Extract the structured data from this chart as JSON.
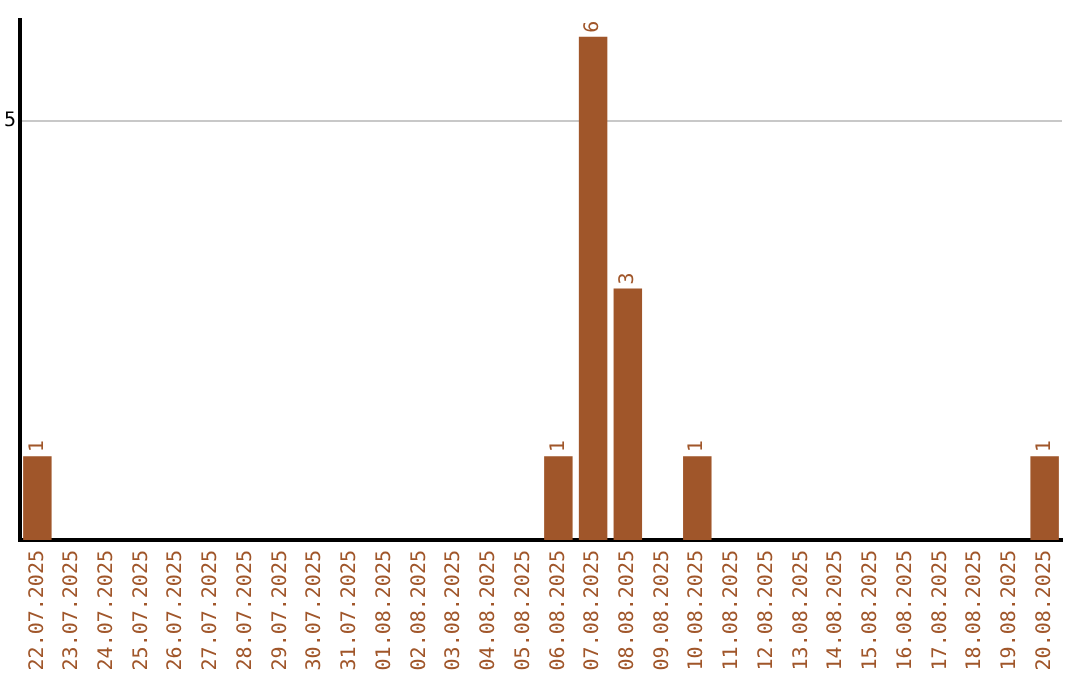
{
  "chart_data": {
    "type": "bar",
    "categories": [
      "22.07.2025",
      "23.07.2025",
      "24.07.2025",
      "25.07.2025",
      "26.07.2025",
      "27.07.2025",
      "28.07.2025",
      "29.07.2025",
      "30.07.2025",
      "31.07.2025",
      "01.08.2025",
      "02.08.2025",
      "03.08.2025",
      "04.08.2025",
      "05.08.2025",
      "06.08.2025",
      "07.08.2025",
      "08.08.2025",
      "09.08.2025",
      "10.08.2025",
      "11.08.2025",
      "12.08.2025",
      "13.08.2025",
      "14.08.2025",
      "15.08.2025",
      "16.08.2025",
      "17.08.2025",
      "18.08.2025",
      "19.08.2025",
      "20.08.2025"
    ],
    "values": [
      1,
      0,
      0,
      0,
      0,
      0,
      0,
      0,
      0,
      0,
      0,
      0,
      0,
      0,
      0,
      1,
      6,
      3,
      0,
      1,
      0,
      0,
      0,
      0,
      0,
      0,
      0,
      0,
      0,
      1
    ],
    "value_labels": [
      "1",
      null,
      null,
      null,
      null,
      null,
      null,
      null,
      null,
      null,
      null,
      null,
      null,
      null,
      null,
      "1",
      "6",
      "3",
      null,
      "1",
      null,
      null,
      null,
      null,
      null,
      null,
      null,
      null,
      null,
      "1"
    ],
    "color": "#a0562a",
    "ylim": [
      0,
      6.2
    ],
    "yticks": [
      5
    ],
    "grid": "y",
    "legend": false
  }
}
